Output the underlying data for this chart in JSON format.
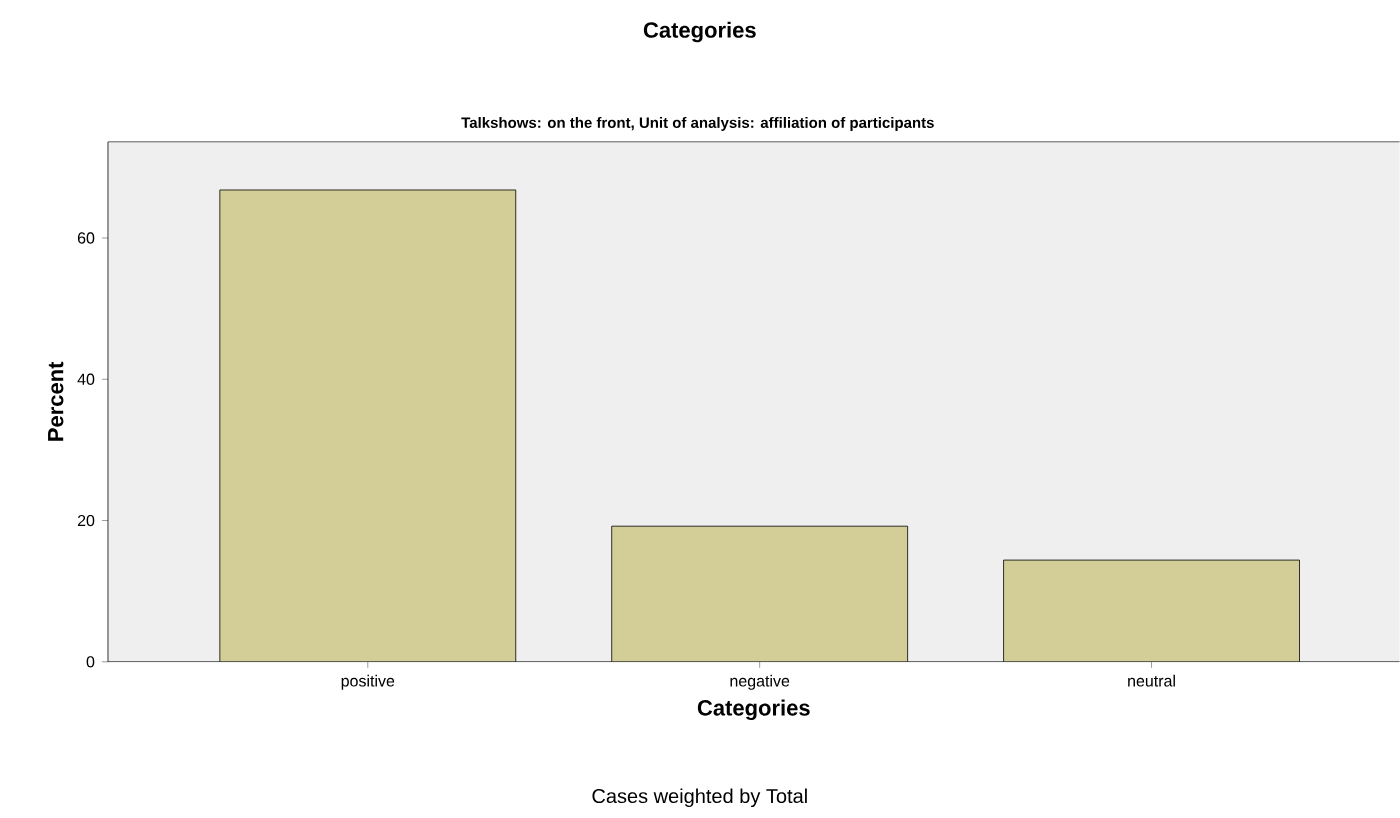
{
  "chart_data": {
    "type": "bar",
    "title": "Categories",
    "subtitle": "Talkshows: on the front, Unit of analysis: affiliation of participants",
    "xlabel": "Categories",
    "ylabel": "Percent",
    "annotations": [
      "Cases weighted by Total"
    ],
    "categories": [
      "positive",
      "negative",
      "neutral"
    ],
    "values": [
      66.8,
      19.2,
      14.4
    ],
    "color": "#d3ce98",
    "ylim": [
      0,
      73.6
    ],
    "yticks": [
      0,
      20,
      40,
      60
    ],
    "grid": false
  }
}
